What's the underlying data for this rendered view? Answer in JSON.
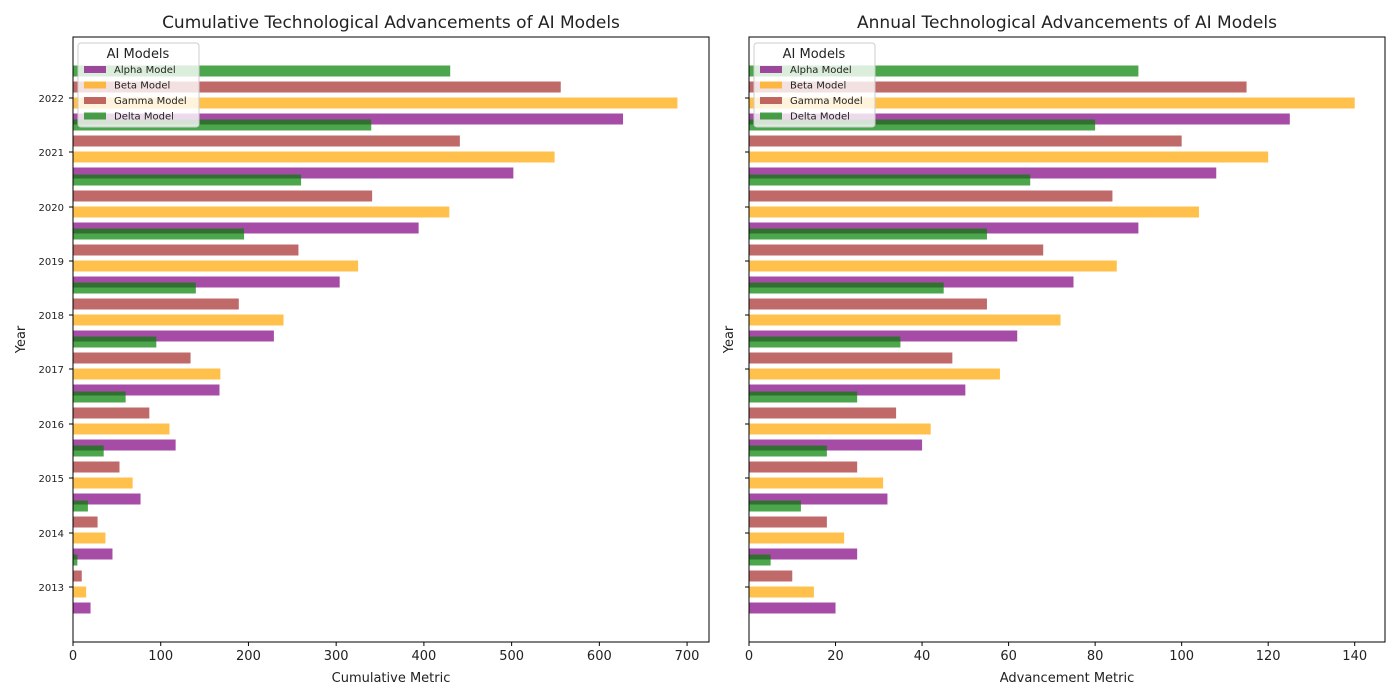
{
  "chart_data": [
    {
      "type": "bar",
      "orientation": "horizontal",
      "title": "Cumulative Technological Advancements of AI Models",
      "xlabel": "Cumulative Metric",
      "ylabel": "Year",
      "xlim": [
        0,
        725
      ],
      "xticks": [
        0,
        100,
        200,
        300,
        400,
        500,
        600,
        700
      ],
      "categories": [
        "2013",
        "2014",
        "2015",
        "2016",
        "2017",
        "2018",
        "2019",
        "2020",
        "2021",
        "2022"
      ],
      "legend_title": "AI Models",
      "legend_position": "top-left",
      "grid": false,
      "series": [
        {
          "name": "Alpha Model",
          "color": "#800080",
          "values": [
            20,
            45,
            77,
            117,
            167,
            229,
            304,
            394,
            502,
            627
          ]
        },
        {
          "name": "Beta Model",
          "color": "#FFA500",
          "values": [
            15,
            37,
            68,
            110,
            168,
            240,
            325,
            429,
            549,
            689
          ]
        },
        {
          "name": "Gamma Model",
          "color": "#A52A2A",
          "values": [
            10,
            28,
            53,
            87,
            134,
            189,
            257,
            341,
            441,
            556
          ]
        },
        {
          "name": "Delta Model",
          "color": "#008000",
          "values": [
            5,
            17,
            35,
            60,
            95,
            140,
            195,
            260,
            340,
            430
          ]
        }
      ]
    },
    {
      "type": "bar",
      "orientation": "horizontal",
      "title": "Annual Technological Advancements of AI Models",
      "xlabel": "Advancement Metric",
      "ylabel": "Year",
      "xlim": [
        0,
        147
      ],
      "xticks": [
        0,
        20,
        40,
        60,
        80,
        100,
        120,
        140
      ],
      "categories": [
        "2013",
        "2014",
        "2015",
        "2016",
        "2017",
        "2018",
        "2019",
        "2020",
        "2021",
        "2022"
      ],
      "legend_title": "AI Models",
      "legend_position": "top-left",
      "grid": false,
      "series": [
        {
          "name": "Alpha Model",
          "color": "#800080",
          "values": [
            20,
            25,
            32,
            40,
            50,
            62,
            75,
            90,
            108,
            125
          ]
        },
        {
          "name": "Beta Model",
          "color": "#FFA500",
          "values": [
            15,
            22,
            31,
            42,
            58,
            72,
            85,
            104,
            120,
            140
          ]
        },
        {
          "name": "Gamma Model",
          "color": "#A52A2A",
          "values": [
            10,
            18,
            25,
            34,
            47,
            55,
            68,
            84,
            100,
            115
          ]
        },
        {
          "name": "Delta Model",
          "color": "#008000",
          "values": [
            5,
            12,
            18,
            25,
            35,
            45,
            55,
            65,
            80,
            90
          ]
        }
      ]
    }
  ]
}
